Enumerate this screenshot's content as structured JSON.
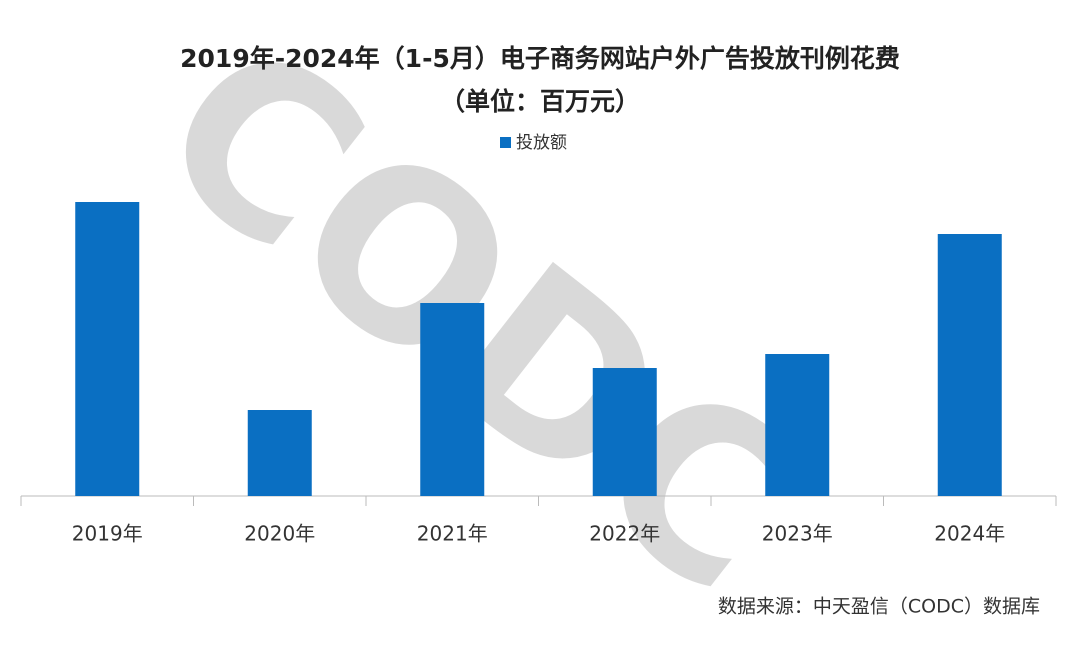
{
  "chart_data": {
    "type": "bar",
    "title": "2019年-2024年（1-5月）电子商务网站户外广告投放刊例花费",
    "subtitle": "（单位：百万元）",
    "categories": [
      "2019年",
      "2020年",
      "2021年",
      "2022年",
      "2023年",
      "2024年"
    ],
    "series": [
      {
        "name": "投放额",
        "color": "#0a6fc2",
        "values": [
          294,
          86,
          193,
          128,
          142,
          262
        ]
      }
    ],
    "ylim": [
      0,
      320
    ],
    "legend": "top",
    "watermark": "CODC",
    "source": "数据来源：中天盈信（CODC）数据库"
  }
}
